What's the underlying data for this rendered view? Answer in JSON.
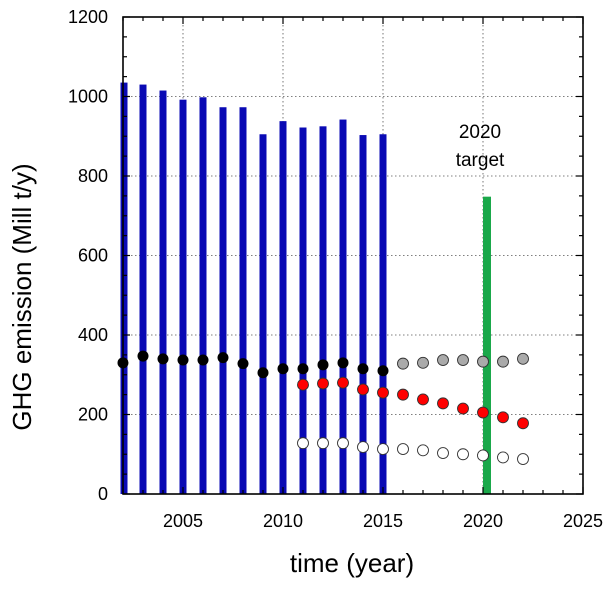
{
  "chart_data": {
    "type": "bar",
    "xlabel": "time (year)",
    "ylabel": "GHG emission (Mill t/y)",
    "xlim": [
      2002,
      2025
    ],
    "ylim": [
      0,
      1200
    ],
    "xticks": [
      2005,
      2010,
      2015,
      2020,
      2025
    ],
    "yticks": [
      0,
      200,
      400,
      600,
      800,
      1000,
      1200
    ],
    "grid": "dotted",
    "bars": {
      "color": "#0a0ab4",
      "x": [
        2002,
        2003,
        2004,
        2005,
        2006,
        2007,
        2008,
        2009,
        2010,
        2011,
        2012,
        2013,
        2014,
        2015
      ],
      "values": [
        1035,
        1030,
        1015,
        992,
        998,
        973,
        973,
        905,
        938,
        922,
        925,
        942,
        903,
        905
      ]
    },
    "target_bar": {
      "color": "#1aa84a",
      "x": 2020.2,
      "value": 748,
      "annotation": [
        "2020",
        "target"
      ]
    },
    "series": [
      {
        "marker": "black-dot",
        "fill": "#000000",
        "x": [
          2002,
          2003,
          2004,
          2005,
          2006,
          2007,
          2008,
          2009,
          2010,
          2011,
          2012,
          2013,
          2014,
          2015
        ],
        "values": [
          330,
          347,
          340,
          337,
          337,
          343,
          328,
          305,
          315,
          315,
          325,
          330,
          315,
          310
        ]
      },
      {
        "marker": "red-dot",
        "fill": "#ff0000",
        "x": [
          2011,
          2012,
          2013,
          2014,
          2015,
          2016,
          2017,
          2018,
          2019,
          2020,
          2021,
          2022
        ],
        "values": [
          275,
          278,
          280,
          263,
          255,
          250,
          238,
          228,
          215,
          205,
          193,
          178
        ]
      },
      {
        "marker": "grey-dot",
        "fill": "#aaaaaa",
        "x": [
          2016,
          2017,
          2018,
          2019,
          2020,
          2021,
          2022
        ],
        "values": [
          328,
          330,
          337,
          337,
          333,
          333,
          340
        ]
      },
      {
        "marker": "white-dot",
        "fill": "#ffffff",
        "x": [
          2011,
          2012,
          2013,
          2014,
          2015,
          2016,
          2017,
          2018,
          2019,
          2020,
          2021,
          2022
        ],
        "values": [
          128,
          128,
          128,
          118,
          113,
          113,
          110,
          103,
          100,
          97,
          92,
          88
        ]
      }
    ]
  }
}
